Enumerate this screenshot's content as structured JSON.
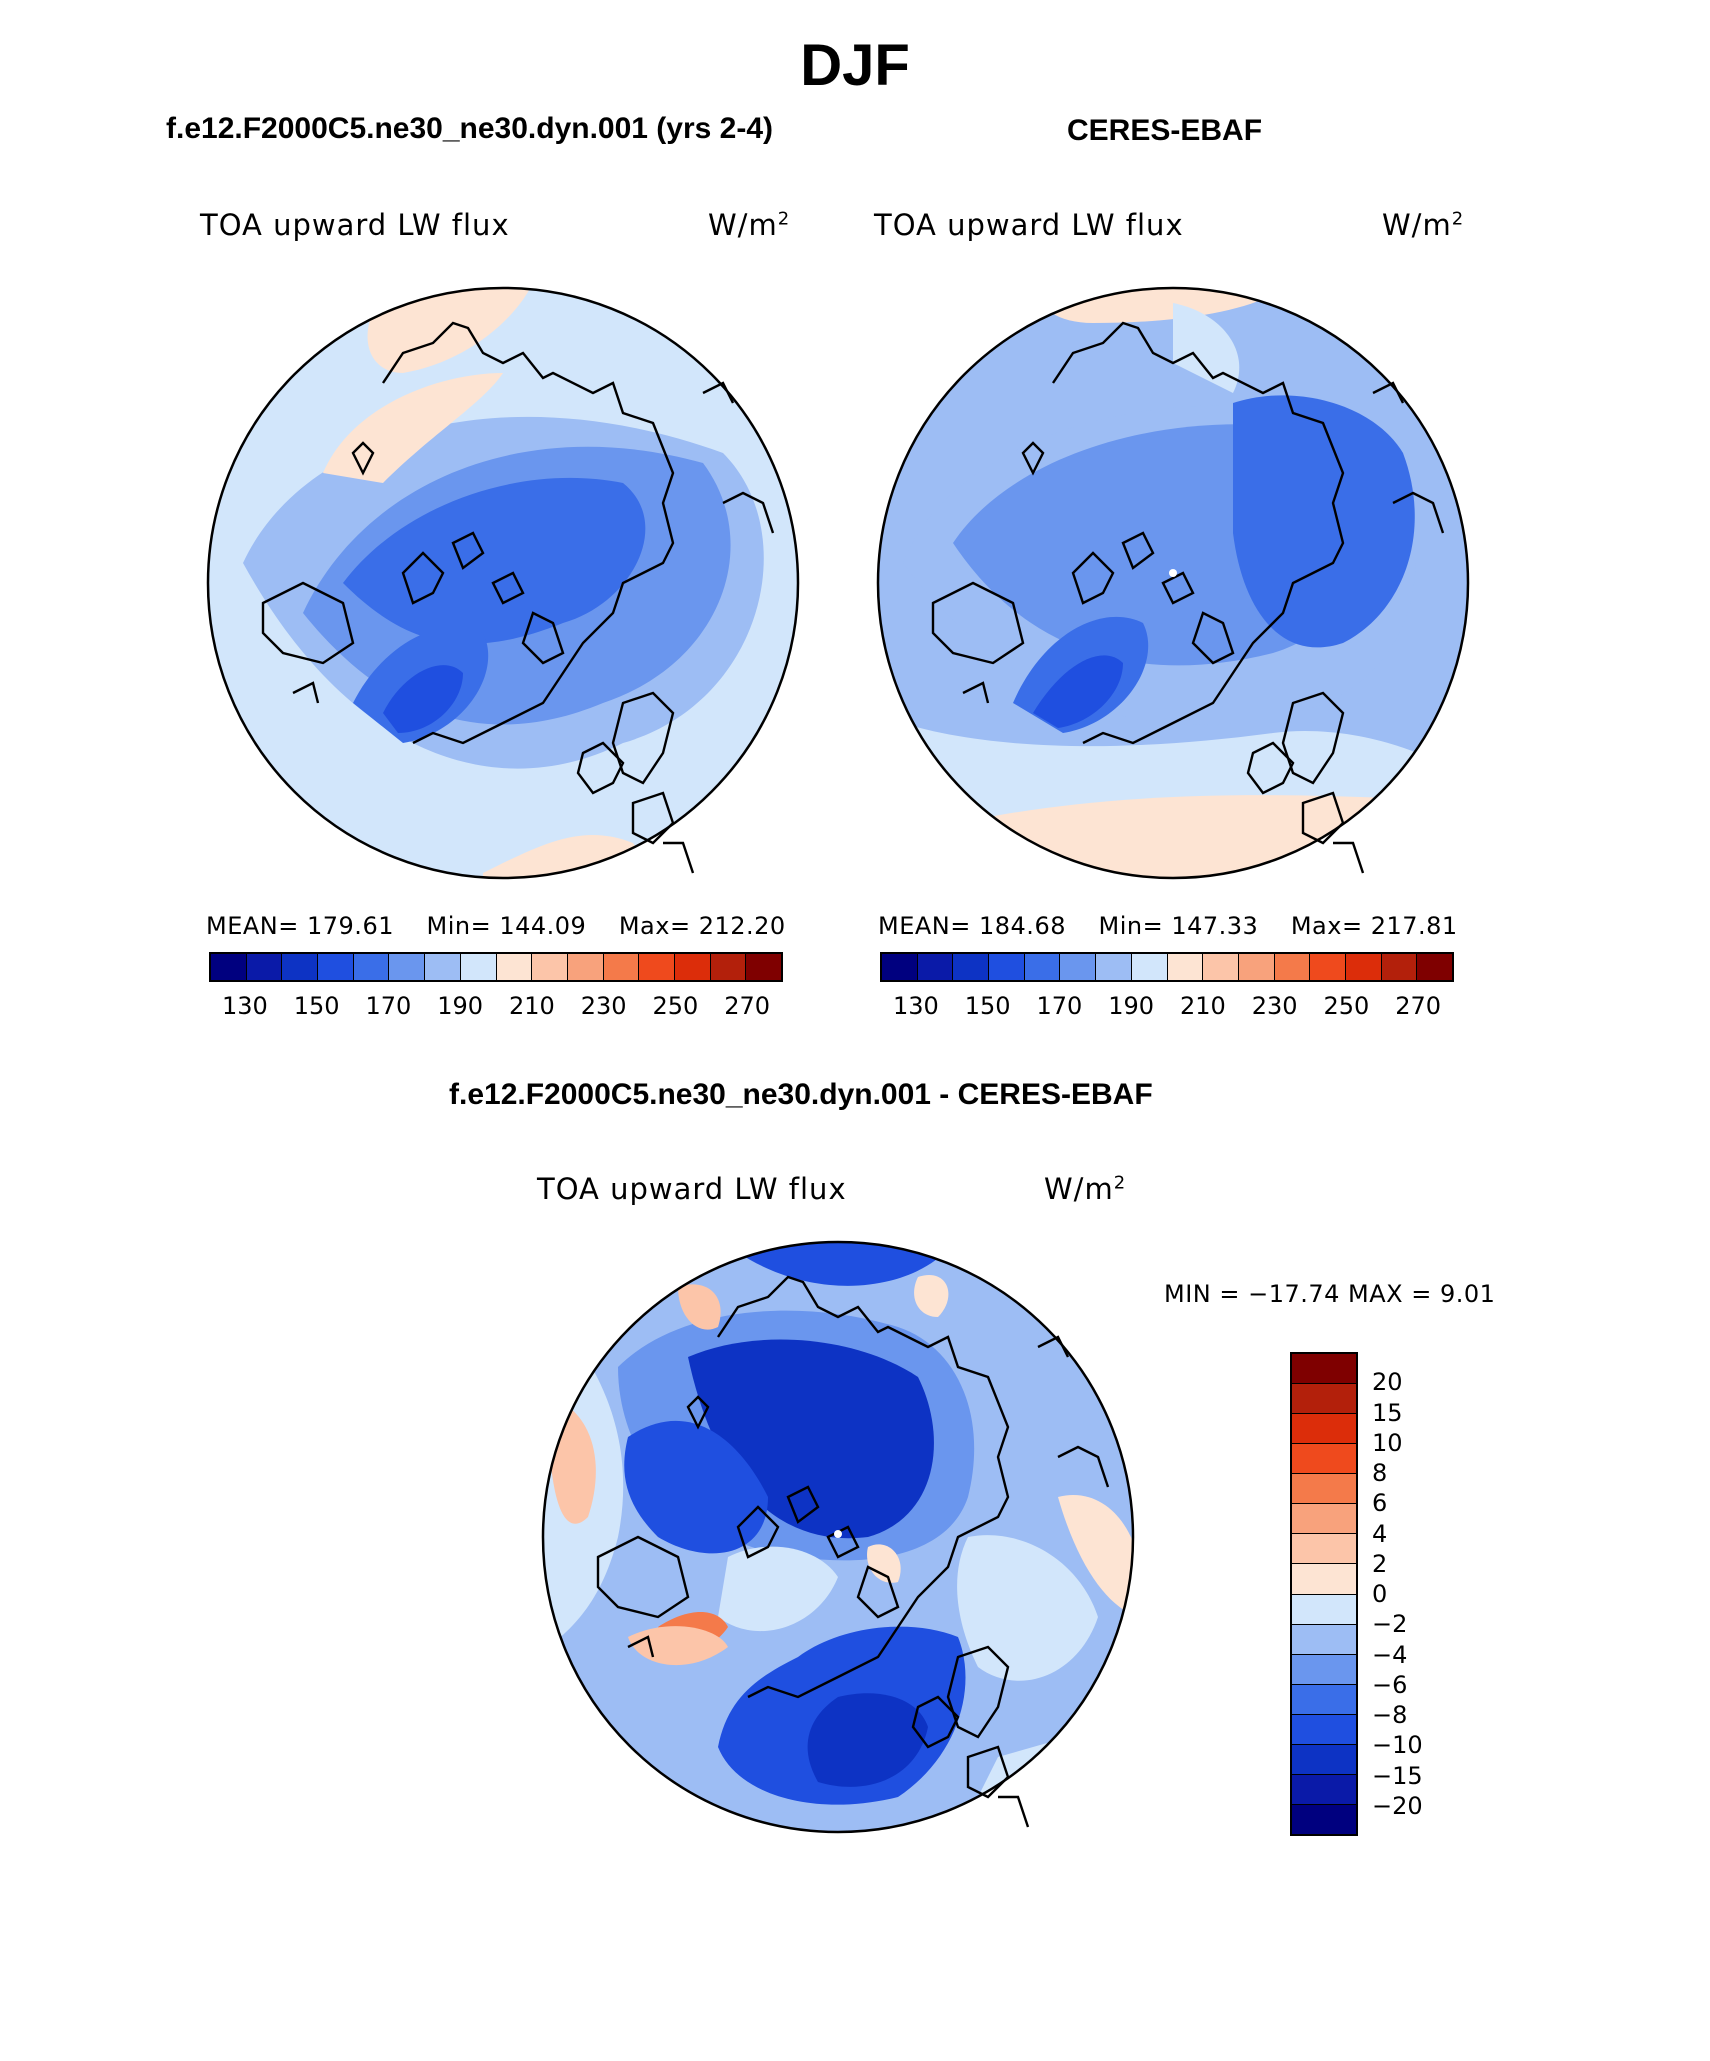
{
  "figure": {
    "title": "DJF",
    "panels": [
      {
        "title": "f.e12.F2000C5.ne30_ne30.dyn.001 (yrs 2-4)",
        "variable": "TOA upward LW flux",
        "units": "W/m",
        "units_exp": "2",
        "stats": {
          "mean_label": "MEAN=",
          "mean": "179.61",
          "min_label": "Min=",
          "min": "144.09",
          "max_label": "Max=",
          "max": "212.20"
        }
      },
      {
        "title": "CERES-EBAF",
        "variable": "TOA upward LW flux",
        "units": "W/m",
        "units_exp": "2",
        "stats": {
          "mean_label": "MEAN=",
          "mean": "184.68",
          "min_label": "Min=",
          "min": "147.33",
          "max_label": "Max=",
          "max": "217.81"
        }
      }
    ],
    "diff_panel": {
      "title": "f.e12.F2000C5.ne30_ne30.dyn.001 - CERES-EBAF",
      "variable": "TOA upward LW flux",
      "units": "W/m",
      "units_exp": "2",
      "minmax": "MIN = −17.74 MAX =    9.01"
    }
  },
  "colorbar_abs": {
    "colors": [
      "#00007f",
      "#0a1aa8",
      "#0d33c4",
      "#1f4fe0",
      "#3a6ee8",
      "#6a96ee",
      "#9dbdf4",
      "#d2e6fb",
      "#fde4d3",
      "#fcc5a9",
      "#f8a27c",
      "#f47a4a",
      "#ef4a1d",
      "#dc2d0a",
      "#b3200b",
      "#7f0000"
    ],
    "tick_labels": [
      "130",
      "150",
      "170",
      "190",
      "210",
      "230",
      "250",
      "270"
    ]
  },
  "colorbar_diff": {
    "colors": [
      "#7f0000",
      "#b3200b",
      "#dc2d0a",
      "#ef4a1d",
      "#f47a4a",
      "#f8a27c",
      "#fcc5a9",
      "#fde4d3",
      "#d2e6fb",
      "#9dbdf4",
      "#6a96ee",
      "#3a6ee8",
      "#1f4fe0",
      "#0d33c4",
      "#0a1aa8",
      "#00007f"
    ],
    "tick_labels": [
      "20",
      "15",
      "10",
      "8",
      "6",
      "4",
      "2",
      "0",
      "−2",
      "−4",
      "−6",
      "−8",
      "−10",
      "−15",
      "−20"
    ]
  }
}
